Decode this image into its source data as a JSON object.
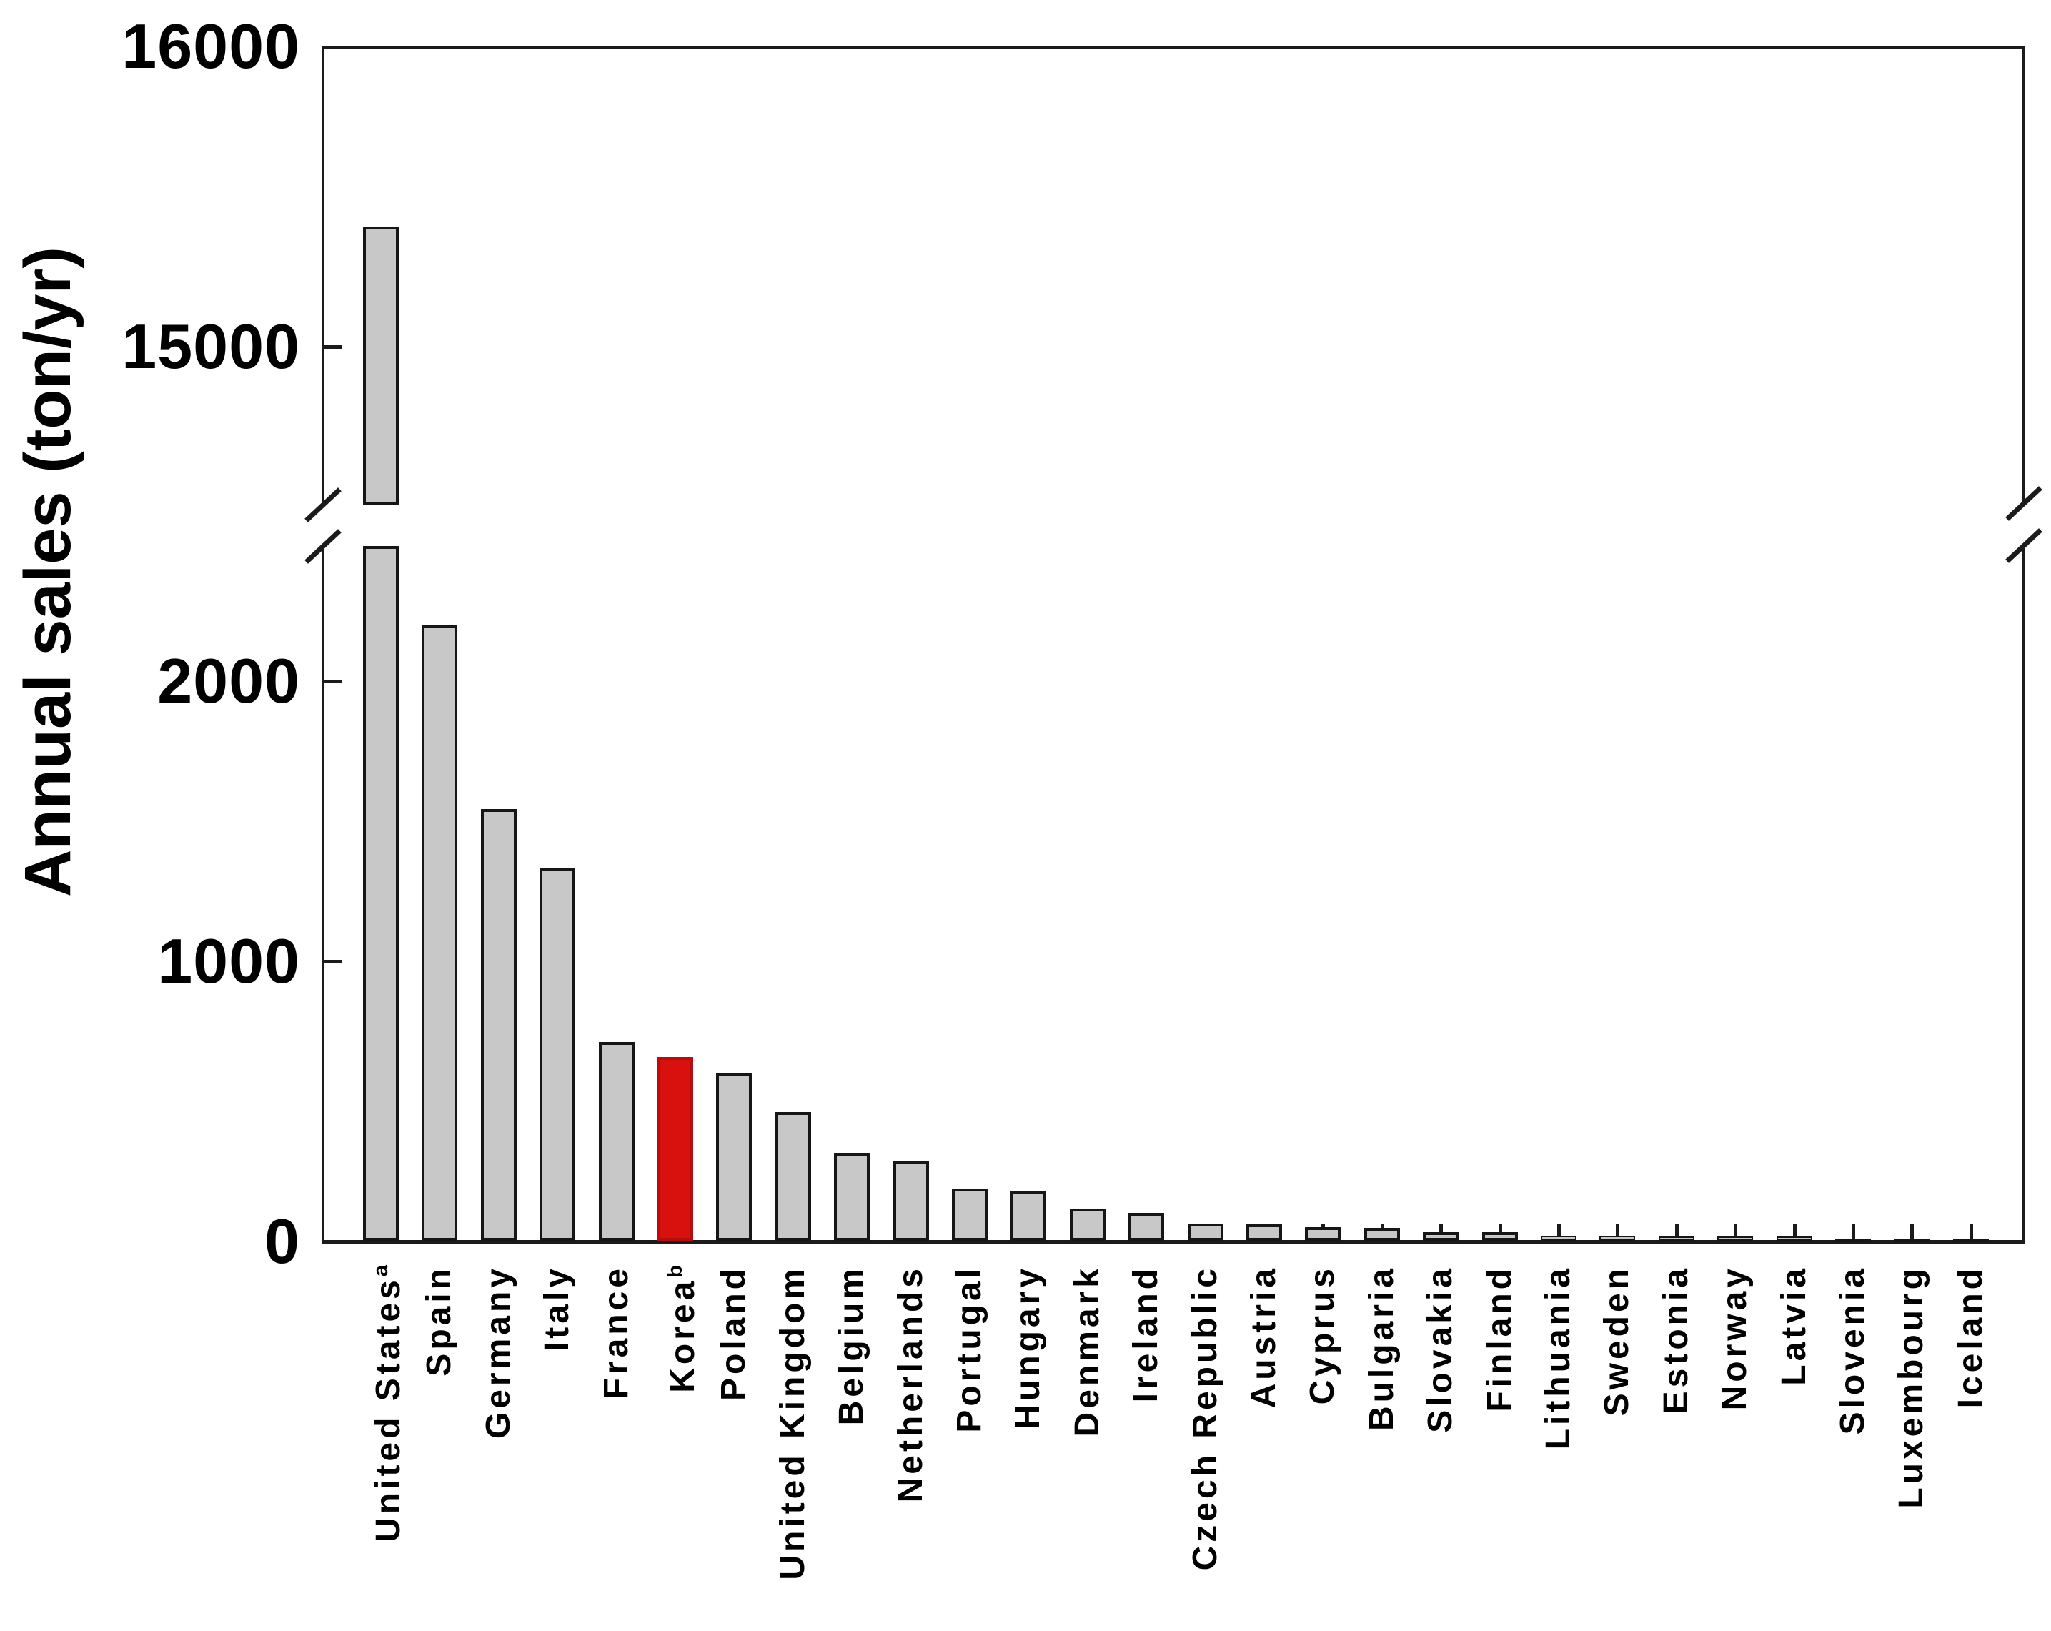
{
  "chart_data": {
    "type": "bar",
    "title": "",
    "xlabel": "",
    "ylabel": "Annual sales (ton/yr)",
    "legend": false,
    "grid": false,
    "bar_color": "#c8c8c8",
    "bar_border_color": "#161616",
    "highlight_color": "#d8100e",
    "highlight_border_color": "#b70d0c",
    "highlight_index": 5,
    "axis_break": {
      "lower_segment": {
        "min": 0,
        "max": 2480,
        "ticks": [
          0,
          1000,
          2000
        ]
      },
      "upper_segment": {
        "min": 14470,
        "max": 16000,
        "ticks": [
          15000,
          16000
        ]
      }
    },
    "categories": [
      {
        "label": "United States",
        "sup": "a",
        "value": 15400
      },
      {
        "label": "Spain",
        "sup": "",
        "value": 2200
      },
      {
        "label": "Germany",
        "sup": "",
        "value": 1540
      },
      {
        "label": "Italy",
        "sup": "",
        "value": 1330
      },
      {
        "label": "France",
        "sup": "",
        "value": 710
      },
      {
        "label": "Korea",
        "sup": "b",
        "value": 655
      },
      {
        "label": "Poland",
        "sup": "",
        "value": 600
      },
      {
        "label": "United Kingdom",
        "sup": "",
        "value": 460
      },
      {
        "label": "Belgium",
        "sup": "",
        "value": 315
      },
      {
        "label": "Netherlands",
        "sup": "",
        "value": 285
      },
      {
        "label": "Portugal",
        "sup": "",
        "value": 185
      },
      {
        "label": "Hungary",
        "sup": "",
        "value": 175
      },
      {
        "label": "Denmark",
        "sup": "",
        "value": 115
      },
      {
        "label": "Ireland",
        "sup": "",
        "value": 100
      },
      {
        "label": "Czech Republic",
        "sup": "",
        "value": 62
      },
      {
        "label": "Austria",
        "sup": "",
        "value": 58
      },
      {
        "label": "Cyprus",
        "sup": "",
        "value": 48
      },
      {
        "label": "Bulgaria",
        "sup": "",
        "value": 45
      },
      {
        "label": "Slovakia",
        "sup": "",
        "value": 30
      },
      {
        "label": "Finland",
        "sup": "",
        "value": 30
      },
      {
        "label": "Lithuania",
        "sup": "",
        "value": 18
      },
      {
        "label": "Sweden",
        "sup": "",
        "value": 18
      },
      {
        "label": "Estonia",
        "sup": "",
        "value": 15
      },
      {
        "label": "Norway",
        "sup": "",
        "value": 15
      },
      {
        "label": "Latvia",
        "sup": "",
        "value": 15
      },
      {
        "label": "Slovenia",
        "sup": "",
        "value": 4
      },
      {
        "label": "Luxembourg",
        "sup": "",
        "value": 3
      },
      {
        "label": "Iceland",
        "sup": "",
        "value": 3
      }
    ]
  }
}
